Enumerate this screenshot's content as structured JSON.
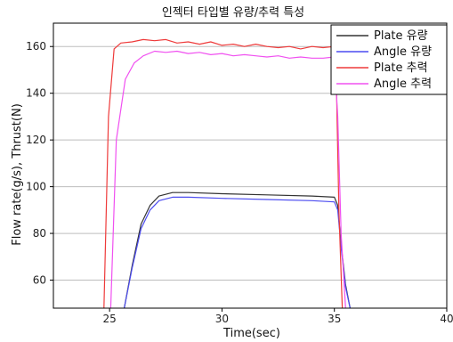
{
  "chart_data": {
    "type": "line",
    "title": "인젝터 타입별 유량/추력 특성",
    "xlabel": "Time(sec)",
    "ylabel": "Flow rate(g/s), Thrust(N)",
    "xlim": [
      22.5,
      40
    ],
    "ylim": [
      48,
      170
    ],
    "xticks": [
      25,
      30,
      35,
      40
    ],
    "yticks": [
      60,
      80,
      100,
      120,
      140,
      160
    ],
    "grid": true,
    "legend_position": "top-right",
    "series": [
      {
        "name": "Plate 유량",
        "color": "#333333",
        "x": [
          22.5,
          25.5,
          25.65,
          26.0,
          26.4,
          26.8,
          27.2,
          27.8,
          28.5,
          30,
          32,
          34,
          35.0,
          35.15,
          35.3,
          35.5,
          35.7,
          40
        ],
        "y": [
          null,
          null,
          48,
          66,
          84,
          92,
          96,
          97.5,
          97.5,
          97,
          96.5,
          96,
          95.5,
          92,
          75,
          58,
          48,
          null
        ]
      },
      {
        "name": "Angle 유량",
        "color": "#4c4cf0",
        "x": [
          22.5,
          25.5,
          25.65,
          26.0,
          26.4,
          26.8,
          27.2,
          27.8,
          28.5,
          30,
          32,
          34,
          35.0,
          35.15,
          35.3,
          35.5,
          35.7,
          40
        ],
        "y": [
          null,
          null,
          48,
          65,
          82,
          90,
          94,
          95.5,
          95.5,
          95,
          94.5,
          94,
          93.5,
          90,
          74,
          57,
          48,
          null
        ]
      },
      {
        "name": "Plate 추력",
        "color": "#ee3a3a",
        "x": [
          22.5,
          24.6,
          24.75,
          24.95,
          25.2,
          25.5,
          26,
          26.5,
          27,
          27.5,
          28,
          28.5,
          29,
          29.5,
          30,
          30.5,
          31,
          31.5,
          32,
          32.5,
          33,
          33.5,
          34,
          34.5,
          35.0,
          35.1,
          35.2,
          35.35,
          40
        ],
        "y": [
          null,
          null,
          48,
          130,
          159,
          161.5,
          162,
          163,
          162.5,
          163,
          161.5,
          162,
          161,
          162,
          160.5,
          161,
          160,
          161,
          160,
          159.5,
          160,
          159,
          160,
          159.5,
          160,
          140,
          90,
          48,
          null
        ]
      },
      {
        "name": "Angle 추력",
        "color": "#f050f0",
        "x": [
          22.5,
          24.9,
          25.05,
          25.3,
          25.7,
          26.1,
          26.5,
          27,
          27.5,
          28,
          28.5,
          29,
          29.5,
          30,
          30.5,
          31,
          31.5,
          32,
          32.5,
          33,
          33.5,
          34,
          34.5,
          35.0,
          35.15,
          35.3,
          35.5,
          40
        ],
        "y": [
          null,
          null,
          48,
          120,
          146,
          153,
          156,
          158,
          157.5,
          158,
          157,
          157.5,
          156.5,
          157,
          156,
          156.5,
          156,
          155.5,
          156,
          155,
          155.5,
          155,
          155,
          155.5,
          130,
          80,
          48,
          null
        ]
      }
    ]
  }
}
